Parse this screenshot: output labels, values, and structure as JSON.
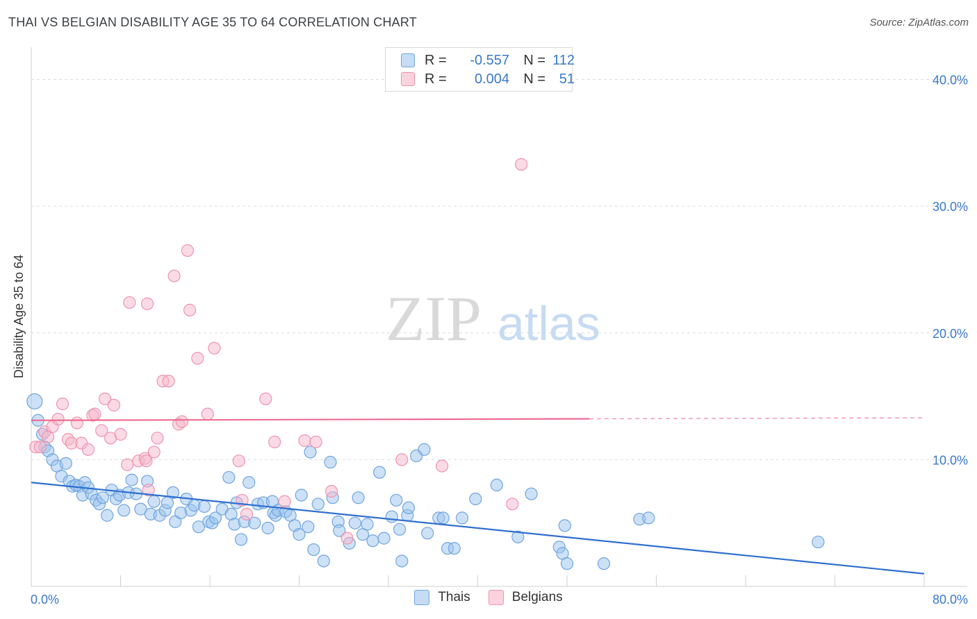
{
  "header": {
    "title": "THAI VS BELGIAN DISABILITY AGE 35 TO 64 CORRELATION CHART",
    "source": "Source: ZipAtlas.com"
  },
  "watermark": {
    "zip": "ZIP",
    "atlas": "atlas"
  },
  "legend": {
    "rows": [
      {
        "r_label": "R =",
        "r_value": "-0.557",
        "n_label": "N =",
        "n_value": "112",
        "color": "#9cc3ee"
      },
      {
        "r_label": "R =",
        "r_value": "0.004",
        "n_label": "N =",
        "n_value": "51",
        "color": "#f6b8cb"
      }
    ]
  },
  "bottom_legend": [
    {
      "label": "Thais",
      "color": "#9cc3ee"
    },
    {
      "label": "Belgians",
      "color": "#f6b8cb"
    }
  ],
  "chart_data": {
    "type": "scatter",
    "title": "THAI VS BELGIAN DISABILITY AGE 35 TO 64 CORRELATION CHART",
    "xlabel": "",
    "ylabel": "Disability Age 35 to 64",
    "xlim": [
      0,
      80
    ],
    "ylim": [
      0,
      42
    ],
    "x_tick_labels": [
      "0.0%",
      "80.0%"
    ],
    "y_ticks": [
      10,
      20,
      30,
      40
    ],
    "y_tick_labels": [
      "10.0%",
      "20.0%",
      "30.0%",
      "40.0%"
    ],
    "grid": true,
    "legend_position": "top-center",
    "series": [
      {
        "name": "Thais",
        "color": "#9cc3ee",
        "stroke": "#6fa4df",
        "trend": {
          "x0": 0,
          "y0": 8.2,
          "x1": 80,
          "y1": 1.0,
          "color": "#2f6fd0"
        },
        "points": [
          [
            0.3,
            14.6
          ],
          [
            0.6,
            13.1
          ],
          [
            1.0,
            12.0
          ],
          [
            1.2,
            11.0
          ],
          [
            1.5,
            10.7
          ],
          [
            1.9,
            10.0
          ],
          [
            2.3,
            9.5
          ],
          [
            2.7,
            8.7
          ],
          [
            3.1,
            9.7
          ],
          [
            3.4,
            8.3
          ],
          [
            3.7,
            7.9
          ],
          [
            4.0,
            8.0
          ],
          [
            4.3,
            7.9
          ],
          [
            4.6,
            7.2
          ],
          [
            4.8,
            8.2
          ],
          [
            5.1,
            7.8
          ],
          [
            5.4,
            7.3
          ],
          [
            5.8,
            6.8
          ],
          [
            6.1,
            6.5
          ],
          [
            6.4,
            7.0
          ],
          [
            6.8,
            5.6
          ],
          [
            7.2,
            7.6
          ],
          [
            7.6,
            6.9
          ],
          [
            7.9,
            7.2
          ],
          [
            8.3,
            6.0
          ],
          [
            8.7,
            7.4
          ],
          [
            9.0,
            8.4
          ],
          [
            9.4,
            7.3
          ],
          [
            9.8,
            6.1
          ],
          [
            10.4,
            8.3
          ],
          [
            10.7,
            5.7
          ],
          [
            11.0,
            6.7
          ],
          [
            11.5,
            5.6
          ],
          [
            12.0,
            6.0
          ],
          [
            12.2,
            6.6
          ],
          [
            12.9,
            5.1
          ],
          [
            12.7,
            7.4
          ],
          [
            13.4,
            5.8
          ],
          [
            13.9,
            6.9
          ],
          [
            14.3,
            6.0
          ],
          [
            14.6,
            6.4
          ],
          [
            15.0,
            4.7
          ],
          [
            15.5,
            6.3
          ],
          [
            15.9,
            5.1
          ],
          [
            16.2,
            5.0
          ],
          [
            16.5,
            5.4
          ],
          [
            17.1,
            6.1
          ],
          [
            17.7,
            8.6
          ],
          [
            17.9,
            5.7
          ],
          [
            18.2,
            4.9
          ],
          [
            18.4,
            6.6
          ],
          [
            18.8,
            3.7
          ],
          [
            19.1,
            5.1
          ],
          [
            19.5,
            8.2
          ],
          [
            20.0,
            5.0
          ],
          [
            20.3,
            6.5
          ],
          [
            20.8,
            6.6
          ],
          [
            21.2,
            4.6
          ],
          [
            21.6,
            6.7
          ],
          [
            21.7,
            5.8
          ],
          [
            21.9,
            5.6
          ],
          [
            22.1,
            6.0
          ],
          [
            22.8,
            5.9
          ],
          [
            23.2,
            5.6
          ],
          [
            23.6,
            4.8
          ],
          [
            24.0,
            4.1
          ],
          [
            24.2,
            7.2
          ],
          [
            24.8,
            4.7
          ],
          [
            25.0,
            10.6
          ],
          [
            25.3,
            2.9
          ],
          [
            25.7,
            6.5
          ],
          [
            26.2,
            2.0
          ],
          [
            26.8,
            9.8
          ],
          [
            27.0,
            7.0
          ],
          [
            27.5,
            5.1
          ],
          [
            27.6,
            4.4
          ],
          [
            28.5,
            3.4
          ],
          [
            29.0,
            5.0
          ],
          [
            29.3,
            7.0
          ],
          [
            29.7,
            4.1
          ],
          [
            30.1,
            4.9
          ],
          [
            30.6,
            3.6
          ],
          [
            31.2,
            9.0
          ],
          [
            31.6,
            3.8
          ],
          [
            32.3,
            5.5
          ],
          [
            32.7,
            6.8
          ],
          [
            33.0,
            4.5
          ],
          [
            33.2,
            2.0
          ],
          [
            33.7,
            5.6
          ],
          [
            33.8,
            6.2
          ],
          [
            34.5,
            10.3
          ],
          [
            35.2,
            10.8
          ],
          [
            35.5,
            4.2
          ],
          [
            36.5,
            5.4
          ],
          [
            36.9,
            5.4
          ],
          [
            37.3,
            3.0
          ],
          [
            37.9,
            3.0
          ],
          [
            38.6,
            5.4
          ],
          [
            39.8,
            6.9
          ],
          [
            41.7,
            8.0
          ],
          [
            43.6,
            3.9
          ],
          [
            44.8,
            7.3
          ],
          [
            47.3,
            3.1
          ],
          [
            47.6,
            2.6
          ],
          [
            47.8,
            4.8
          ],
          [
            48.0,
            1.8
          ],
          [
            51.3,
            1.8
          ],
          [
            54.5,
            5.3
          ],
          [
            55.3,
            5.4
          ],
          [
            70.5,
            3.5
          ]
        ]
      },
      {
        "name": "Belgians",
        "color": "#f6b8cb",
        "stroke": "#ef93ae",
        "trend": {
          "x0": 0,
          "y0": 13.1,
          "x1": 80,
          "y1": 13.3,
          "solid_to_x": 50,
          "color": "#ec6c93"
        },
        "points": [
          [
            0.4,
            11.0
          ],
          [
            0.8,
            11.0
          ],
          [
            1.2,
            12.2
          ],
          [
            1.5,
            11.8
          ],
          [
            1.9,
            12.6
          ],
          [
            2.4,
            13.2
          ],
          [
            2.8,
            14.4
          ],
          [
            3.3,
            11.6
          ],
          [
            3.6,
            11.3
          ],
          [
            4.1,
            12.9
          ],
          [
            4.5,
            11.3
          ],
          [
            5.1,
            10.8
          ],
          [
            5.5,
            13.5
          ],
          [
            5.7,
            13.6
          ],
          [
            6.3,
            12.3
          ],
          [
            6.6,
            14.8
          ],
          [
            7.1,
            11.7
          ],
          [
            7.4,
            14.3
          ],
          [
            8.0,
            12.0
          ],
          [
            8.6,
            9.6
          ],
          [
            8.8,
            22.4
          ],
          [
            9.6,
            9.9
          ],
          [
            10.2,
            10.1
          ],
          [
            10.5,
            7.6
          ],
          [
            10.3,
            9.9
          ],
          [
            10.4,
            22.3
          ],
          [
            11.0,
            10.6
          ],
          [
            11.3,
            11.7
          ],
          [
            11.8,
            16.2
          ],
          [
            12.3,
            16.2
          ],
          [
            12.8,
            24.5
          ],
          [
            13.2,
            12.8
          ],
          [
            13.5,
            13.0
          ],
          [
            14.0,
            26.5
          ],
          [
            14.2,
            21.8
          ],
          [
            14.9,
            18.0
          ],
          [
            15.8,
            13.6
          ],
          [
            16.4,
            18.8
          ],
          [
            18.6,
            9.9
          ],
          [
            18.9,
            6.8
          ],
          [
            19.3,
            5.7
          ],
          [
            21.0,
            14.8
          ],
          [
            21.8,
            11.4
          ],
          [
            22.7,
            6.7
          ],
          [
            24.5,
            11.5
          ],
          [
            25.5,
            11.4
          ],
          [
            26.9,
            7.5
          ],
          [
            28.3,
            3.8
          ],
          [
            33.2,
            10.0
          ],
          [
            36.8,
            9.5
          ],
          [
            43.1,
            6.5
          ],
          [
            43.9,
            33.3
          ]
        ]
      }
    ]
  }
}
